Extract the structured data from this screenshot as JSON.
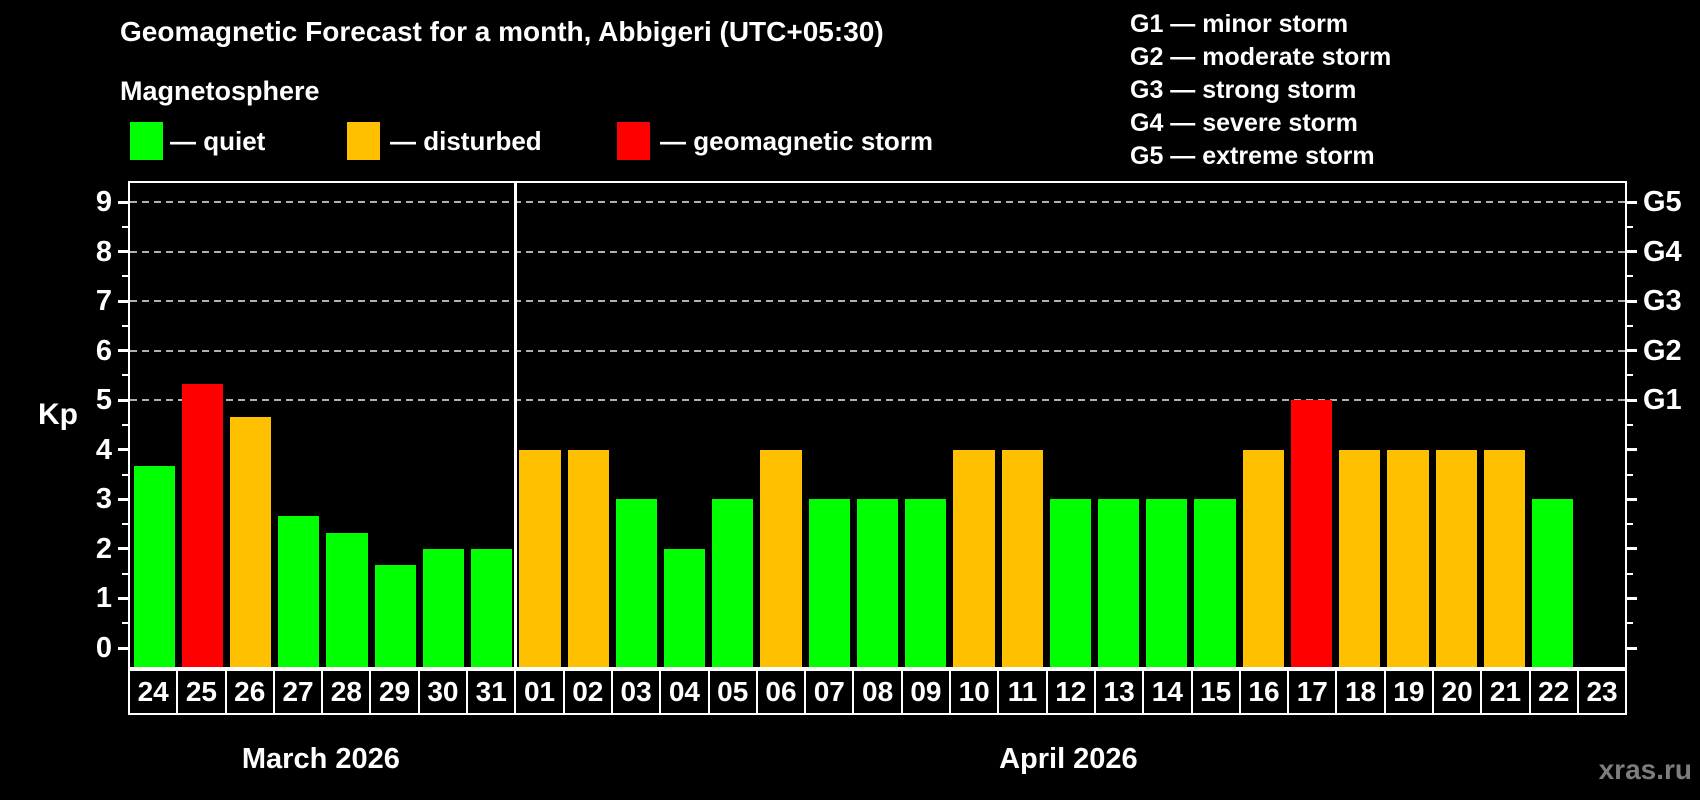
{
  "title": "Geomagnetic Forecast for a month, Abbigeri (UTC+05:30)",
  "subtitle": "Magnetosphere",
  "legend": {
    "items": [
      {
        "label": "— quiet",
        "status": "quiet",
        "color": "#00ff00"
      },
      {
        "label": "— disturbed",
        "status": "disturbed",
        "color": "#ffc000"
      },
      {
        "label": "— geomagnetic storm",
        "status": "storm",
        "color": "#ff0000"
      }
    ]
  },
  "storm_scale_legend": [
    "G1 — minor storm",
    "G2 — moderate storm",
    "G3 — strong storm",
    "G4 — severe storm",
    "G5 — extreme storm"
  ],
  "watermark": "xras.ru",
  "colors": {
    "background": "#000000",
    "text": "#ffffff",
    "grid": "#b0b0b0",
    "axis": "#ffffff",
    "watermark": "#7d7d7d",
    "quiet": "#00ff00",
    "disturbed": "#ffc000",
    "storm": "#ff0000"
  },
  "chart_data": {
    "type": "bar",
    "title": "Geomagnetic Forecast for a month, Abbigeri (UTC+05:30)",
    "ylabel": "Kp",
    "ylim": [
      0,
      9
    ],
    "yticks": [
      0,
      1,
      2,
      3,
      4,
      5,
      6,
      7,
      8,
      9
    ],
    "gridlines_at_kp": [
      5,
      6,
      7,
      8,
      9
    ],
    "right_axis": [
      {
        "kp": 5,
        "label": "G1"
      },
      {
        "kp": 6,
        "label": "G2"
      },
      {
        "kp": 7,
        "label": "G3"
      },
      {
        "kp": 8,
        "label": "G4"
      },
      {
        "kp": 9,
        "label": "G5"
      }
    ],
    "months": [
      {
        "label": "March 2026",
        "start_index": 0,
        "days": 8
      },
      {
        "label": "April 2026",
        "start_index": 8,
        "days": 23
      }
    ],
    "separator_after_index": 7,
    "bars": [
      {
        "date": "24",
        "kp": 3.67,
        "status": "quiet"
      },
      {
        "date": "25",
        "kp": 5.33,
        "status": "storm"
      },
      {
        "date": "26",
        "kp": 4.67,
        "status": "disturbed"
      },
      {
        "date": "27",
        "kp": 2.67,
        "status": "quiet"
      },
      {
        "date": "28",
        "kp": 2.33,
        "status": "quiet"
      },
      {
        "date": "29",
        "kp": 1.67,
        "status": "quiet"
      },
      {
        "date": "30",
        "kp": 2,
        "status": "quiet"
      },
      {
        "date": "31",
        "kp": 2,
        "status": "quiet"
      },
      {
        "date": "01",
        "kp": 4,
        "status": "disturbed"
      },
      {
        "date": "02",
        "kp": 4,
        "status": "disturbed"
      },
      {
        "date": "03",
        "kp": 3,
        "status": "quiet"
      },
      {
        "date": "04",
        "kp": 2,
        "status": "quiet"
      },
      {
        "date": "05",
        "kp": 3,
        "status": "quiet"
      },
      {
        "date": "06",
        "kp": 4,
        "status": "disturbed"
      },
      {
        "date": "07",
        "kp": 3,
        "status": "quiet"
      },
      {
        "date": "08",
        "kp": 3,
        "status": "quiet"
      },
      {
        "date": "09",
        "kp": 3,
        "status": "quiet"
      },
      {
        "date": "10",
        "kp": 4,
        "status": "disturbed"
      },
      {
        "date": "11",
        "kp": 4,
        "status": "disturbed"
      },
      {
        "date": "12",
        "kp": 3,
        "status": "quiet"
      },
      {
        "date": "13",
        "kp": 3,
        "status": "quiet"
      },
      {
        "date": "14",
        "kp": 3,
        "status": "quiet"
      },
      {
        "date": "15",
        "kp": 3,
        "status": "quiet"
      },
      {
        "date": "16",
        "kp": 4,
        "status": "disturbed"
      },
      {
        "date": "17",
        "kp": 5,
        "status": "storm"
      },
      {
        "date": "18",
        "kp": 4,
        "status": "disturbed"
      },
      {
        "date": "19",
        "kp": 4,
        "status": "disturbed"
      },
      {
        "date": "20",
        "kp": 4,
        "status": "disturbed"
      },
      {
        "date": "21",
        "kp": 4,
        "status": "disturbed"
      },
      {
        "date": "22",
        "kp": 3,
        "status": "quiet"
      },
      {
        "date": "23",
        "kp": null,
        "status": "none"
      }
    ]
  }
}
